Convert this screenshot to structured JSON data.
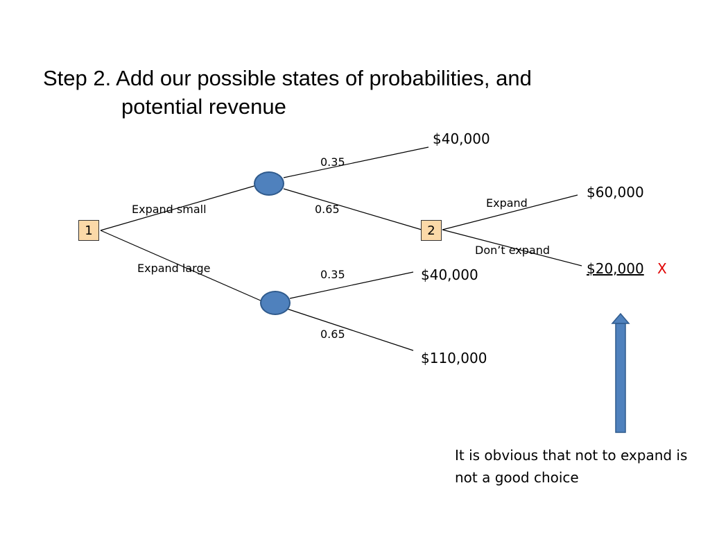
{
  "title": {
    "line1": "Step 2. Add our possible states of probabilities, and",
    "line2": "potential revenue"
  },
  "nodes": {
    "decision1": "1",
    "decision2": "2"
  },
  "branches": {
    "expand_small": "Expand small",
    "expand_large": "Expand large",
    "expand": "Expand",
    "dont_expand": "Don’t expand"
  },
  "probabilities": {
    "small_top": "0.35",
    "small_bottom": "0.65",
    "large_top": "0.35",
    "large_bottom": "0.65"
  },
  "outcomes": {
    "small_top": "$40,000",
    "expand": "$60,000",
    "dont_expand": "$20,000",
    "large_top": "$40,000",
    "large_bottom": "$110,000"
  },
  "reject_mark": "X",
  "note": "It is obvious that not to expand is not a good choice",
  "colors": {
    "decision_fill": "#fbd9a8",
    "chance_fill": "#4f81bd",
    "arrow_fill": "#4f81bd",
    "reject": "#e00000"
  }
}
